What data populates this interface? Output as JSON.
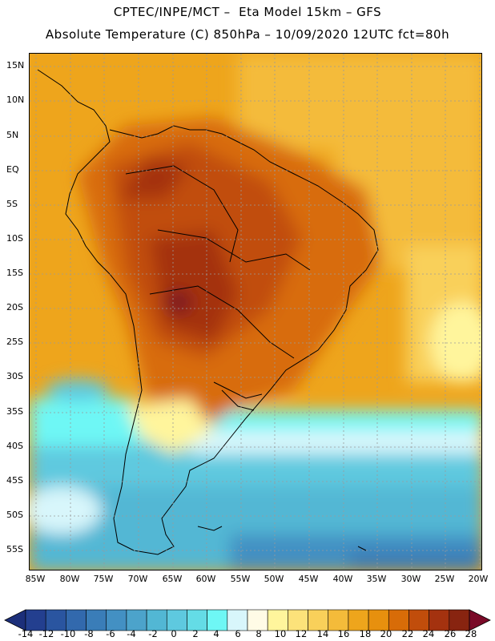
{
  "header": {
    "line1": "CPTEC/INPE/MCT –  Eta Model 15km – GFS",
    "line2": "Absolute Temperature (C) 850hPa – 10/09/2020 12UTC fct=80h"
  },
  "axes": {
    "lat_labels": [
      "15N",
      "10N",
      "5N",
      "EQ",
      "5S",
      "10S",
      "15S",
      "20S",
      "25S",
      "30S",
      "35S",
      "40S",
      "45S",
      "50S",
      "55S"
    ],
    "lon_labels": [
      "85W",
      "80W",
      "75W",
      "70W",
      "65W",
      "60W",
      "55W",
      "50W",
      "45W",
      "40W",
      "35W",
      "30W",
      "25W",
      "20W"
    ]
  },
  "colorbar": {
    "labels": [
      "-14",
      "-12",
      "-10",
      "-8",
      "-6",
      "-4",
      "-2",
      "0",
      "2",
      "4",
      "6",
      "8",
      "10",
      "12",
      "14",
      "16",
      "18",
      "20",
      "22",
      "24",
      "26",
      "28"
    ],
    "colors": [
      "#233f8f",
      "#2a55a0",
      "#3269ad",
      "#3a7db8",
      "#4390c3",
      "#4ca3cb",
      "#52b7d4",
      "#5ec9df",
      "#64dce6",
      "#6ef7f5",
      "#d8f6fb",
      "#fffbe6",
      "#fff59c",
      "#fce27a",
      "#f9d05a",
      "#f4bb3a",
      "#eea51c",
      "#e7900e",
      "#d86c08",
      "#c14d0b",
      "#a4320f",
      "#882410"
    ],
    "under_color": "#1c2f7a",
    "over_color": "#7a0a28"
  }
}
